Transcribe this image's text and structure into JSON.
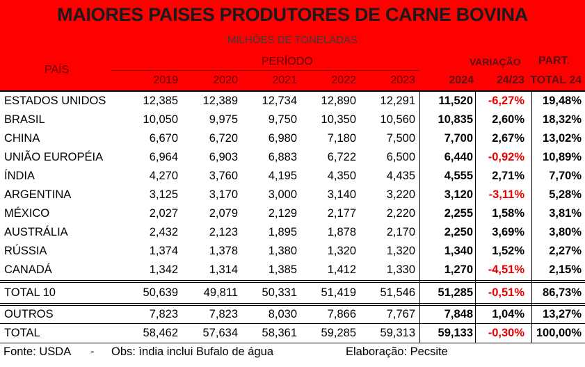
{
  "title": "MAIORES PAISES PRODUTORES DE CARNE BOVINA",
  "subtitle": "MILHÕES DE TONELADAS",
  "header": {
    "pais": "PAÍS",
    "periodo": "PERÍODO",
    "variacao": "VARIAÇÃO",
    "variacao_sub": "24/23",
    "part": "PART.",
    "part_sub": "TOTAL 24",
    "years": [
      "2019",
      "2020",
      "2021",
      "2022",
      "2023",
      "2024"
    ]
  },
  "rows": [
    {
      "name": "ESTADOS UNIDOS",
      "values": [
        "12,385",
        "12,389",
        "12,734",
        "12,890",
        "12,291"
      ],
      "y2024": "11,520",
      "var": "-6,27%",
      "part": "19,48%"
    },
    {
      "name": "BRASIL",
      "values": [
        "10,050",
        "9,975",
        "9,750",
        "10,350",
        "10,560"
      ],
      "y2024": "10,835",
      "var": "2,60%",
      "part": "18,32%"
    },
    {
      "name": "CHINA",
      "values": [
        "6,670",
        "6,720",
        "6,980",
        "7,180",
        "7,500"
      ],
      "y2024": "7,700",
      "var": "2,67%",
      "part": "13,02%"
    },
    {
      "name": "UNIÃO EUROPÉIA",
      "values": [
        "6,964",
        "6,903",
        "6,883",
        "6,722",
        "6,500"
      ],
      "y2024": "6,440",
      "var": "-0,92%",
      "part": "10,89%"
    },
    {
      "name": "ÍNDIA",
      "values": [
        "4,270",
        "3,760",
        "4,195",
        "4,350",
        "4,435"
      ],
      "y2024": "4,555",
      "var": "2,71%",
      "part": "7,70%"
    },
    {
      "name": "ARGENTINA",
      "values": [
        "3,125",
        "3,170",
        "3,000",
        "3,140",
        "3,220"
      ],
      "y2024": "3,120",
      "var": "-3,11%",
      "part": "5,28%"
    },
    {
      "name": "MÉXICO",
      "values": [
        "2,027",
        "2,079",
        "2,129",
        "2,177",
        "2,220"
      ],
      "y2024": "2,255",
      "var": "1,58%",
      "part": "3,81%"
    },
    {
      "name": "AUSTRÁLIA",
      "values": [
        "2,432",
        "2,123",
        "1,895",
        "1,878",
        "2,170"
      ],
      "y2024": "2,250",
      "var": "3,69%",
      "part": "3,80%"
    },
    {
      "name": "RÚSSIA",
      "values": [
        "1,374",
        "1,378",
        "1,380",
        "1,320",
        "1,320"
      ],
      "y2024": "1,340",
      "var": "1,52%",
      "part": "2,27%"
    },
    {
      "name": "CANADÁ",
      "values": [
        "1,342",
        "1,314",
        "1,385",
        "1,412",
        "1,330"
      ],
      "y2024": "1,270",
      "var": "-4,51%",
      "part": "2,15%"
    }
  ],
  "totals": [
    {
      "name": "TOTAL 10",
      "values": [
        "50,639",
        "49,811",
        "50,331",
        "51,419",
        "51,546"
      ],
      "y2024": "51,285",
      "var": "-0,51%",
      "part": "86,73%"
    },
    {
      "name": "OUTROS",
      "values": [
        "7,823",
        "7,823",
        "8,030",
        "7,866",
        "7,767"
      ],
      "y2024": "7,848",
      "var": "1,04%",
      "part": "13,27%"
    },
    {
      "name": "TOTAL",
      "values": [
        "58,462",
        "57,634",
        "58,361",
        "59,285",
        "59,313"
      ],
      "y2024": "59,133",
      "var": "-0,30%",
      "part": "100,00%"
    }
  ],
  "footer": {
    "source": "Fonte: USDA",
    "sep": "-",
    "obs": "Obs: ìndia inclui Bufalo de água",
    "credit": "Elaboração: Pecsite"
  },
  "colors": {
    "banner": "#ff0000",
    "negative": "#e60000"
  }
}
